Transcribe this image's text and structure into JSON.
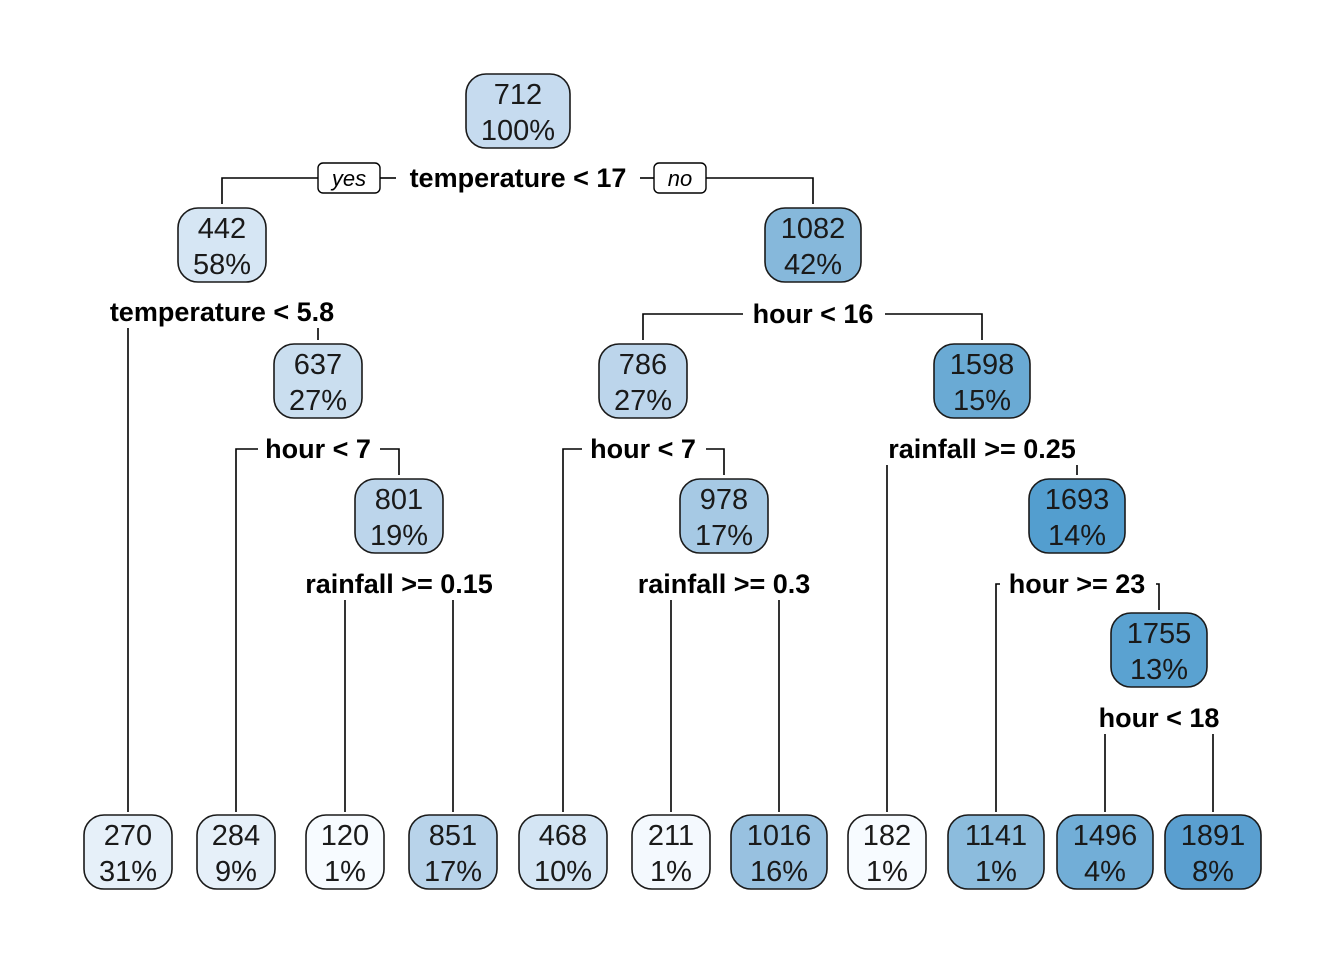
{
  "tree": {
    "yes_label": "yes",
    "no_label": "no",
    "nodes": {
      "root": {
        "value": "712",
        "pct": "100%",
        "color": "#c6dbef",
        "split": "temperature < 17"
      },
      "n442": {
        "value": "442",
        "pct": "58%",
        "color": "#d6e6f4",
        "split": "temperature < 5.8"
      },
      "n1082": {
        "value": "1082",
        "pct": "42%",
        "color": "#86b8db",
        "split": "hour < 16"
      },
      "n637": {
        "value": "637",
        "pct": "27%",
        "color": "#cadeef",
        "split": "hour < 7"
      },
      "n786": {
        "value": "786",
        "pct": "27%",
        "color": "#bcd5eb",
        "split": "hour < 7"
      },
      "n1598": {
        "value": "1598",
        "pct": "15%",
        "color": "#6aaad4",
        "split": "rainfall >= 0.25"
      },
      "n801": {
        "value": "801",
        "pct": "19%",
        "color": "#bcd5eb",
        "split": "rainfall >= 0.15"
      },
      "n978": {
        "value": "978",
        "pct": "17%",
        "color": "#a6c9e4",
        "split": "rainfall >= 0.3"
      },
      "n1693": {
        "value": "1693",
        "pct": "14%",
        "color": "#539ecf",
        "split": "hour >= 23"
      },
      "n1755": {
        "value": "1755",
        "pct": "13%",
        "color": "#5aa2d1",
        "split": "hour < 18"
      },
      "l270": {
        "value": "270",
        "pct": "31%",
        "color": "#e6f0f9"
      },
      "l284": {
        "value": "284",
        "pct": "9%",
        "color": "#e6f0f9"
      },
      "l120": {
        "value": "120",
        "pct": "1%",
        "color": "#f7fbff"
      },
      "l851": {
        "value": "851",
        "pct": "17%",
        "color": "#b8d3ea"
      },
      "l468": {
        "value": "468",
        "pct": "10%",
        "color": "#d4e5f4"
      },
      "l211": {
        "value": "211",
        "pct": "1%",
        "color": "#f4f9fe"
      },
      "l1016": {
        "value": "1016",
        "pct": "16%",
        "color": "#98c1e0"
      },
      "l182": {
        "value": "182",
        "pct": "1%",
        "color": "#f7fbff"
      },
      "l1141": {
        "value": "1141",
        "pct": "1%",
        "color": "#8cbcdd"
      },
      "l1496": {
        "value": "1496",
        "pct": "4%",
        "color": "#72aed7"
      },
      "l1891": {
        "value": "1891",
        "pct": "8%",
        "color": "#5a9fd0"
      }
    }
  }
}
